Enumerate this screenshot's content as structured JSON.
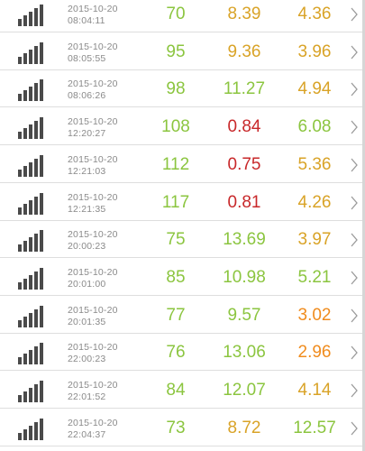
{
  "colors": {
    "green": "#8bc53f",
    "red": "#c8282a",
    "amber": "#d9a327",
    "orange": "#f08c1e",
    "signal": "#4a4a4a",
    "timestamp": "#8a8a8a"
  },
  "icons": {
    "signal": "signal-strength-icon",
    "chevron": "chevron-right-icon"
  },
  "rows": [
    {
      "date": "2015-10-20",
      "time": "08:04:11",
      "v1": "70",
      "v2": "8.39",
      "v3": "4.36",
      "c1": "green",
      "c2": "amber",
      "c3": "amber"
    },
    {
      "date": "2015-10-20",
      "time": "08:05:55",
      "v1": "95",
      "v2": "9.36",
      "v3": "3.96",
      "c1": "green",
      "c2": "amber",
      "c3": "amber"
    },
    {
      "date": "2015-10-20",
      "time": "08:06:26",
      "v1": "98",
      "v2": "11.27",
      "v3": "4.94",
      "c1": "green",
      "c2": "green",
      "c3": "amber"
    },
    {
      "date": "2015-10-20",
      "time": "12:20:27",
      "v1": "108",
      "v2": "0.84",
      "v3": "6.08",
      "c1": "green",
      "c2": "red",
      "c3": "green"
    },
    {
      "date": "2015-10-20",
      "time": "12:21:03",
      "v1": "112",
      "v2": "0.75",
      "v3": "5.36",
      "c1": "green",
      "c2": "red",
      "c3": "amber"
    },
    {
      "date": "2015-10-20",
      "time": "12:21:35",
      "v1": "117",
      "v2": "0.81",
      "v3": "4.26",
      "c1": "green",
      "c2": "red",
      "c3": "amber"
    },
    {
      "date": "2015-10-20",
      "time": "20:00:23",
      "v1": "75",
      "v2": "13.69",
      "v3": "3.97",
      "c1": "green",
      "c2": "green",
      "c3": "amber"
    },
    {
      "date": "2015-10-20",
      "time": "20:01:00",
      "v1": "85",
      "v2": "10.98",
      "v3": "5.21",
      "c1": "green",
      "c2": "green",
      "c3": "green"
    },
    {
      "date": "2015-10-20",
      "time": "20:01:35",
      "v1": "77",
      "v2": "9.57",
      "v3": "3.02",
      "c1": "green",
      "c2": "green",
      "c3": "orange"
    },
    {
      "date": "2015-10-20",
      "time": "22:00:23",
      "v1": "76",
      "v2": "13.06",
      "v3": "2.96",
      "c1": "green",
      "c2": "green",
      "c3": "orange"
    },
    {
      "date": "2015-10-20",
      "time": "22:01:52",
      "v1": "84",
      "v2": "12.07",
      "v3": "4.14",
      "c1": "green",
      "c2": "green",
      "c3": "amber"
    },
    {
      "date": "2015-10-20",
      "time": "22:04:37",
      "v1": "73",
      "v2": "8.72",
      "v3": "12.57",
      "c1": "green",
      "c2": "amber",
      "c3": "green"
    }
  ]
}
